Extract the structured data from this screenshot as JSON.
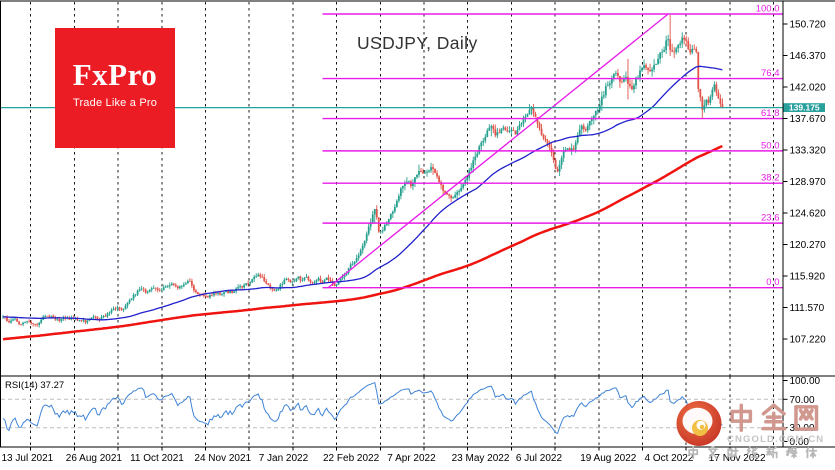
{
  "header": {
    "title": "USDJPY, Daily"
  },
  "logo": {
    "brand": "FxPro",
    "tagline": "Trade Like a Pro"
  },
  "rsi": {
    "label": "RSI(14)",
    "value": "37.27",
    "axis_labels": [
      "100.00",
      "70.00",
      "30.00",
      "0.00"
    ]
  },
  "price_axis": {
    "labels": [
      "150.720",
      "146.370",
      "142.020",
      "137.670",
      "133.320",
      "128.970",
      "124.620",
      "120.270",
      "115.920",
      "111.570",
      "107.220"
    ],
    "current": "139.175"
  },
  "watermark": {
    "brand": "中金网",
    "domain": "CNGOLD.COM.CN",
    "tagline": "中文财经新媒体"
  },
  "colors": {
    "up": "#26A08E",
    "down": "#E0544A",
    "ma_fast": "#2121CC",
    "ma_slow": "#F01410",
    "fib": "#E81CE8",
    "price_line": "#22A3A0",
    "grid": "#000000",
    "frame": "#000000",
    "rsi_line": "#3F83D6",
    "rsi_level": "#BDBDBD",
    "tag_bg": "#2AA09D",
    "wm_red": "#C9382A",
    "wm_text": "#D0988E",
    "wm_gray": "#B8B8B8"
  },
  "chart_data": {
    "type": "candlestick",
    "title": "USDJPY, Daily",
    "x_labels": [
      "13 Jul 2021",
      "26 Aug 2021",
      "11 Oct 2021",
      "24 Nov 2021",
      "7 Jan 2022",
      "22 Feb 2022",
      "7 Apr 2022",
      "23 May 2022",
      "6 Jul 2022",
      "19 Aug 2022",
      "4 Oct 2022",
      "17 Nov 2022"
    ],
    "ylim": [
      104.6,
      153.9
    ],
    "y_ticks": [
      150.72,
      146.37,
      142.02,
      137.67,
      133.32,
      128.97,
      124.62,
      120.27,
      115.92,
      111.57,
      107.22
    ],
    "bars": 359,
    "seed": 11,
    "close_waypoints": [
      [
        0,
        110.3
      ],
      [
        3,
        109.6
      ],
      [
        6,
        109.9
      ],
      [
        9,
        109.2
      ],
      [
        13,
        109.6
      ],
      [
        17,
        109.1
      ],
      [
        20,
        110.3
      ],
      [
        24,
        110.4
      ],
      [
        27,
        109.8
      ],
      [
        31,
        110.1
      ],
      [
        35,
        110.0
      ],
      [
        38,
        109.9
      ],
      [
        41,
        109.6
      ],
      [
        45,
        110.3
      ],
      [
        48,
        109.9
      ],
      [
        52,
        110.6
      ],
      [
        55,
        111.3
      ],
      [
        57,
        111.5
      ],
      [
        60,
        111.3
      ],
      [
        63,
        112.6
      ],
      [
        66,
        113.5
      ],
      [
        69,
        114.2
      ],
      [
        72,
        113.6
      ],
      [
        75,
        114.3
      ],
      [
        78,
        113.8
      ],
      [
        81,
        114.6
      ],
      [
        84,
        114.9
      ],
      [
        87,
        114.1
      ],
      [
        90,
        114.8
      ],
      [
        93,
        115.3
      ],
      [
        95,
        114.1
      ],
      [
        97,
        113.5
      ],
      [
        99,
        113.2
      ],
      [
        102,
        112.9
      ],
      [
        105,
        113.6
      ],
      [
        108,
        113.5
      ],
      [
        111,
        113.8
      ],
      [
        114,
        113.6
      ],
      [
        117,
        114.3
      ],
      [
        120,
        114.6
      ],
      [
        123,
        115.1
      ],
      [
        125,
        115.9
      ],
      [
        127,
        116.1
      ],
      [
        129,
        115.7
      ],
      [
        131,
        114.9
      ],
      [
        133,
        114.3
      ],
      [
        135,
        113.8
      ],
      [
        137,
        114.3
      ],
      [
        139,
        114.9
      ],
      [
        141,
        115.5
      ],
      [
        143,
        114.9
      ],
      [
        145,
        115.3
      ],
      [
        147,
        115.7
      ],
      [
        149,
        115.3
      ],
      [
        151,
        115.8
      ],
      [
        153,
        114.9
      ],
      [
        155,
        115.1
      ],
      [
        157,
        115.5
      ],
      [
        159,
        114.9
      ],
      [
        161,
        115.6
      ],
      [
        163,
        115.1
      ],
      [
        165,
        114.6
      ],
      [
        167,
        115.3
      ],
      [
        169,
        115.8
      ],
      [
        171,
        116.5
      ],
      [
        173,
        117.4
      ],
      [
        175,
        118.0
      ],
      [
        177,
        118.7
      ],
      [
        179,
        119.9
      ],
      [
        181,
        121.8
      ],
      [
        183,
        123.4
      ],
      [
        185,
        125.0
      ],
      [
        186,
        123.8
      ],
      [
        187,
        122.0
      ],
      [
        189,
        122.3
      ],
      [
        191,
        123.2
      ],
      [
        193,
        124.5
      ],
      [
        195,
        125.6
      ],
      [
        197,
        127.2
      ],
      [
        199,
        128.6
      ],
      [
        201,
        129.1
      ],
      [
        203,
        128.5
      ],
      [
        205,
        129.3
      ],
      [
        207,
        130.6
      ],
      [
        209,
        130.0
      ],
      [
        211,
        130.4
      ],
      [
        213,
        131.1
      ],
      [
        215,
        130.2
      ],
      [
        217,
        129.1
      ],
      [
        219,
        127.9
      ],
      [
        221,
        127.3
      ],
      [
        223,
        126.9
      ],
      [
        225,
        127.1
      ],
      [
        227,
        127.7
      ],
      [
        229,
        128.4
      ],
      [
        231,
        129.6
      ],
      [
        233,
        131.0
      ],
      [
        235,
        132.3
      ],
      [
        237,
        133.6
      ],
      [
        239,
        134.7
      ],
      [
        241,
        135.9
      ],
      [
        243,
        136.6
      ],
      [
        245,
        135.4
      ],
      [
        247,
        135.9
      ],
      [
        249,
        136.3
      ],
      [
        251,
        135.8
      ],
      [
        253,
        136.1
      ],
      [
        255,
        135.6
      ],
      [
        257,
        136.7
      ],
      [
        259,
        137.5
      ],
      [
        261,
        138.3
      ],
      [
        263,
        139.0
      ],
      [
        265,
        137.6
      ],
      [
        267,
        136.2
      ],
      [
        269,
        135.2
      ],
      [
        271,
        134.1
      ],
      [
        273,
        133.2
      ],
      [
        274,
        132.0
      ],
      [
        275,
        130.8
      ],
      [
        276,
        130.5
      ],
      [
        278,
        132.2
      ],
      [
        280,
        133.6
      ],
      [
        282,
        133.0
      ],
      [
        284,
        133.6
      ],
      [
        286,
        135.1
      ],
      [
        288,
        136.7
      ],
      [
        290,
        136.2
      ],
      [
        292,
        137.1
      ],
      [
        294,
        138.0
      ],
      [
        296,
        139.0
      ],
      [
        298,
        140.4
      ],
      [
        300,
        141.9
      ],
      [
        302,
        142.7
      ],
      [
        304,
        144.0
      ],
      [
        306,
        143.3
      ],
      [
        308,
        142.7
      ],
      [
        310,
        143.5
      ],
      [
        311,
        142.2
      ],
      [
        313,
        141.6
      ],
      [
        315,
        143.0
      ],
      [
        317,
        144.3
      ],
      [
        319,
        144.7
      ],
      [
        321,
        144.4
      ],
      [
        323,
        144.3
      ],
      [
        325,
        145.4
      ],
      [
        327,
        146.5
      ],
      [
        329,
        147.4
      ],
      [
        331,
        148.9
      ],
      [
        332,
        147.4
      ],
      [
        333,
        146.6
      ],
      [
        334,
        146.8
      ],
      [
        336,
        147.5
      ],
      [
        338,
        148.5
      ],
      [
        340,
        148.2
      ],
      [
        342,
        146.9
      ],
      [
        344,
        147.2
      ],
      [
        345,
        146.6
      ],
      [
        346,
        142.0
      ],
      [
        347,
        140.6
      ],
      [
        348,
        138.9
      ],
      [
        349,
        139.6
      ],
      [
        350,
        140.2
      ],
      [
        351,
        139.6
      ],
      [
        352,
        140.4
      ],
      [
        353,
        141.3
      ],
      [
        354,
        142.1
      ],
      [
        355,
        141.4
      ],
      [
        356,
        140.4
      ],
      [
        357,
        139.8
      ],
      [
        358,
        139.2
      ]
    ],
    "prehistory_waypoints": [
      [
        -220,
        104.8
      ],
      [
        -190,
        104.0
      ],
      [
        -160,
        103.7
      ],
      [
        -130,
        104.9
      ],
      [
        -100,
        107.6
      ],
      [
        -80,
        109.0
      ],
      [
        -60,
        109.4
      ],
      [
        -45,
        110.5
      ],
      [
        -30,
        109.6
      ],
      [
        -15,
        110.6
      ],
      [
        -5,
        110.9
      ]
    ],
    "wick_overrides": {
      "185": [
        125.1,
        123.2
      ],
      "207": [
        131.3,
        129.5
      ],
      "214": [
        131.4,
        129.9
      ],
      "243": [
        136.8,
        135.2
      ],
      "263": [
        139.4,
        138.1
      ],
      "311": [
        145.9,
        140.3
      ],
      "332": [
        151.95,
        146.3
      ],
      "346": [
        146.8,
        141.3
      ],
      "348": [
        140.8,
        137.65
      ]
    },
    "volatility": {
      "base": 0.28,
      "scale": 0.45,
      "wick_base": 0.28,
      "wick_scale": 0.75
    },
    "moving_averages": [
      {
        "period": 50,
        "width": 1.3
      },
      {
        "period": 200,
        "width": 2.5
      }
    ],
    "fibonacci": {
      "high": 152.1,
      "low": 114.3,
      "start_bar": 159,
      "levels": [
        {
          "label": "100.0",
          "ratio": 1
        },
        {
          "label": "76.4",
          "ratio": 0.764
        },
        {
          "label": "61.8",
          "ratio": 0.618
        },
        {
          "label": "50.0",
          "ratio": 0.5
        },
        {
          "label": "38.2",
          "ratio": 0.382
        },
        {
          "label": "23.6",
          "ratio": 0.236
        },
        {
          "label": "0.0",
          "ratio": 0
        }
      ]
    },
    "trendline": {
      "from_bar": 162,
      "from_price": 114.35,
      "to_bar": 331,
      "to_price": 152.1
    },
    "current_price": {
      "value": 139.175,
      "label": "139.175"
    },
    "rsi": {
      "period": 14,
      "levels": [
        100,
        70,
        30,
        0
      ],
      "dashed_levels": [
        70,
        30
      ],
      "last_value": 37.27
    }
  }
}
